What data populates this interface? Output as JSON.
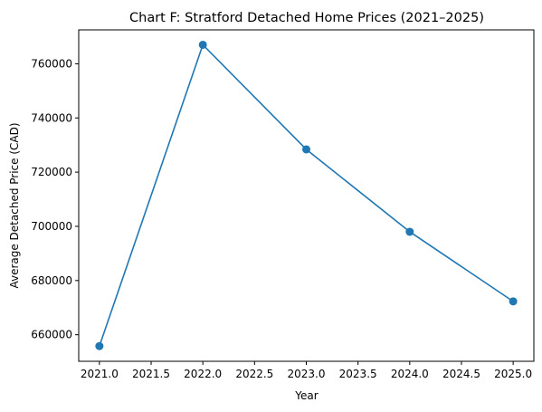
{
  "chart_data": {
    "type": "line",
    "title": "Chart F: Stratford Detached Home Prices (2021–2025)",
    "xlabel": "Year",
    "ylabel": "Average Detached Price (CAD)",
    "x": [
      2021.0,
      2022.0,
      2023.0,
      2024.0,
      2025.0
    ],
    "series": [
      {
        "values": [
          655800,
          767000,
          728400,
          698000,
          672300
        ]
      }
    ],
    "xlim": [
      2020.8,
      2025.2
    ],
    "ylim": [
      650200,
      772500
    ],
    "x_ticks": [
      2021.0,
      2021.5,
      2022.0,
      2022.5,
      2023.0,
      2023.5,
      2024.0,
      2024.5,
      2025.0
    ],
    "x_tick_labels": [
      "2021.0",
      "2021.5",
      "2022.0",
      "2022.5",
      "2023.0",
      "2023.5",
      "2024.0",
      "2024.5",
      "2025.0"
    ],
    "y_ticks": [
      660000,
      680000,
      700000,
      720000,
      740000,
      760000
    ],
    "y_tick_labels": [
      "660000",
      "680000",
      "700000",
      "720000",
      "740000",
      "760000"
    ],
    "grid": false,
    "color": "#1f77b4"
  }
}
